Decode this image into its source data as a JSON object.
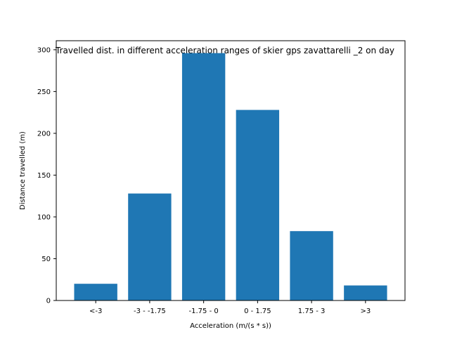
{
  "chart_data": {
    "type": "bar",
    "title": "Travelled dist. in different acceleration ranges of skier gps zavattarelli _2 on day",
    "xlabel": "Acceleration (m/(s * s))",
    "ylabel": "Distance travelled (m)",
    "categories": [
      "<-3",
      "-3 - -1.75",
      "-1.75 - 0",
      "0 - 1.75",
      "1.75 - 3",
      ">3"
    ],
    "values": [
      20,
      128,
      296,
      228,
      83,
      18
    ],
    "ylim": [
      0,
      310.8
    ],
    "yticks": [
      0,
      50,
      100,
      150,
      200,
      250,
      300
    ],
    "grid": false,
    "bar_color": "#1f77b4"
  }
}
